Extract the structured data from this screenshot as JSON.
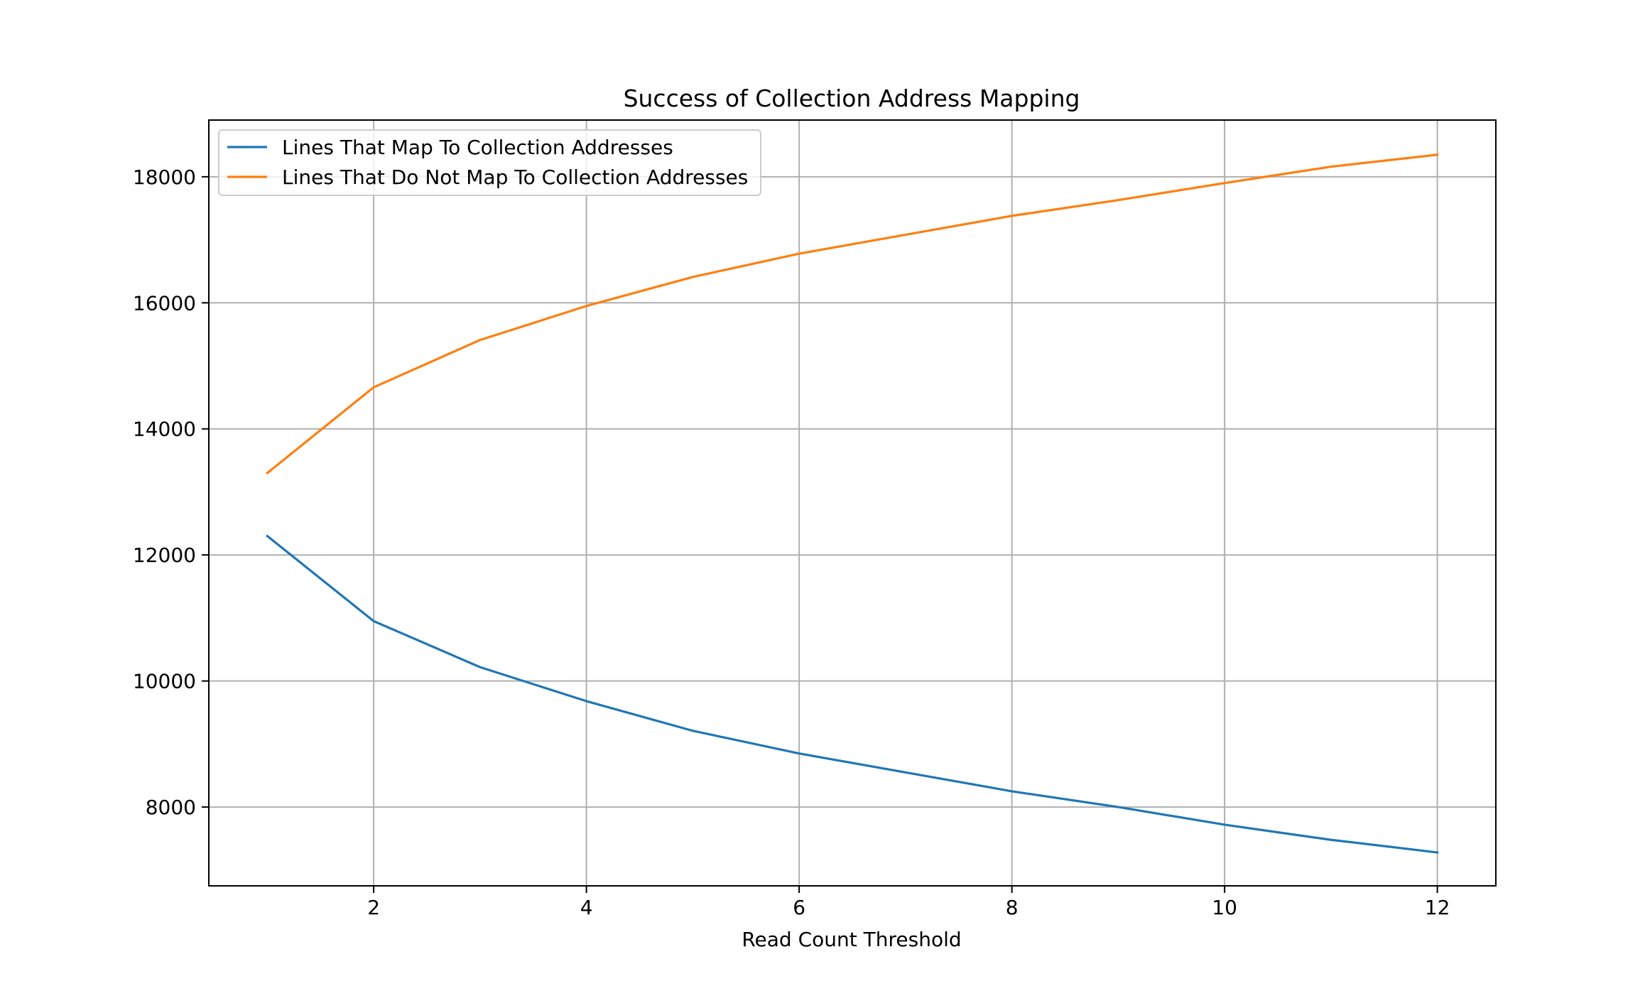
{
  "chart_data": {
    "type": "line",
    "title": "Success of Collection Address Mapping",
    "xlabel": "Read Count Threshold",
    "ylabel": "",
    "x": [
      1,
      2,
      3,
      4,
      5,
      6,
      7,
      8,
      9,
      10,
      11,
      12
    ],
    "series": [
      {
        "name": "Lines That Map To Collection Addresses",
        "color": "#1f77b4",
        "values": [
          12300,
          10950,
          10220,
          9680,
          9210,
          8850,
          8550,
          8250,
          8000,
          7720,
          7480,
          7280
        ]
      },
      {
        "name": "Lines That Do Not Map To Collection Addresses",
        "color": "#ff7f0e",
        "values": [
          13300,
          14660,
          15410,
          15950,
          16410,
          16780,
          17080,
          17380,
          17630,
          17900,
          18160,
          18350
        ]
      }
    ],
    "xlim": [
      0.45,
      12.55
    ],
    "ylim": [
      6750,
      18900
    ],
    "xticks": [
      2,
      4,
      6,
      8,
      10,
      12
    ],
    "yticks": [
      8000,
      10000,
      12000,
      14000,
      16000,
      18000
    ],
    "grid": true,
    "legend_position": "top-left"
  }
}
